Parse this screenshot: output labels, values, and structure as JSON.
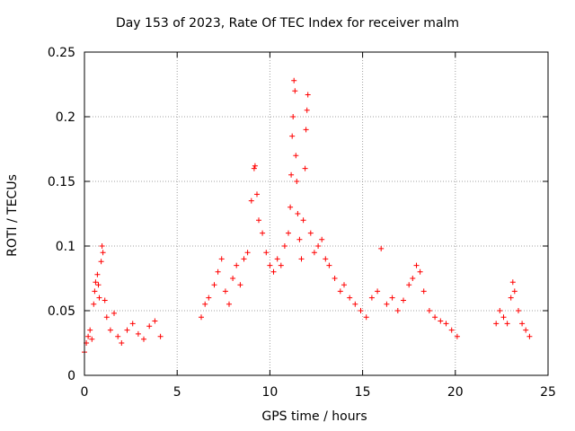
{
  "chart_data": {
    "type": "scatter",
    "title": "Day 153 of 2023, Rate Of TEC Index for receiver malm",
    "xlabel": "GPS time / hours",
    "ylabel": "ROTI / TECUs",
    "xlim": [
      0,
      25
    ],
    "ylim": [
      0,
      0.25
    ],
    "xticks": [
      "0",
      "5",
      "10",
      "15",
      "20",
      "25"
    ],
    "yticks": [
      "0",
      "0.05",
      "0.1",
      "0.15",
      "0.2",
      "0.25"
    ],
    "grid": true,
    "marker": "+",
    "color": "#ff0000",
    "series": [
      {
        "points": [
          [
            0.0,
            0.018
          ],
          [
            0.1,
            0.025
          ],
          [
            0.2,
            0.03
          ],
          [
            0.3,
            0.035
          ],
          [
            0.4,
            0.028
          ],
          [
            0.5,
            0.055
          ],
          [
            0.55,
            0.065
          ],
          [
            0.6,
            0.072
          ],
          [
            0.7,
            0.078
          ],
          [
            0.75,
            0.07
          ],
          [
            0.8,
            0.06
          ],
          [
            0.9,
            0.088
          ],
          [
            0.95,
            0.1
          ],
          [
            1.0,
            0.095
          ],
          [
            1.1,
            0.058
          ],
          [
            1.2,
            0.045
          ],
          [
            1.4,
            0.035
          ],
          [
            1.6,
            0.048
          ],
          [
            1.8,
            0.03
          ],
          [
            2.0,
            0.025
          ],
          [
            2.3,
            0.035
          ],
          [
            2.6,
            0.04
          ],
          [
            2.9,
            0.032
          ],
          [
            3.2,
            0.028
          ],
          [
            3.5,
            0.038
          ],
          [
            3.8,
            0.042
          ],
          [
            4.1,
            0.03
          ],
          [
            6.3,
            0.045
          ],
          [
            6.5,
            0.055
          ],
          [
            6.7,
            0.06
          ],
          [
            7.0,
            0.07
          ],
          [
            7.2,
            0.08
          ],
          [
            7.4,
            0.09
          ],
          [
            7.6,
            0.065
          ],
          [
            7.8,
            0.055
          ],
          [
            8.0,
            0.075
          ],
          [
            8.2,
            0.085
          ],
          [
            8.4,
            0.07
          ],
          [
            8.6,
            0.09
          ],
          [
            8.8,
            0.095
          ],
          [
            9.0,
            0.135
          ],
          [
            9.15,
            0.16
          ],
          [
            9.2,
            0.162
          ],
          [
            9.3,
            0.14
          ],
          [
            9.4,
            0.12
          ],
          [
            9.6,
            0.11
          ],
          [
            9.8,
            0.095
          ],
          [
            10.0,
            0.085
          ],
          [
            10.2,
            0.08
          ],
          [
            10.4,
            0.09
          ],
          [
            10.6,
            0.085
          ],
          [
            10.8,
            0.1
          ],
          [
            11.0,
            0.11
          ],
          [
            11.1,
            0.13
          ],
          [
            11.15,
            0.155
          ],
          [
            11.2,
            0.185
          ],
          [
            11.25,
            0.2
          ],
          [
            11.3,
            0.228
          ],
          [
            11.35,
            0.22
          ],
          [
            11.4,
            0.17
          ],
          [
            11.45,
            0.15
          ],
          [
            11.5,
            0.125
          ],
          [
            11.6,
            0.105
          ],
          [
            11.7,
            0.09
          ],
          [
            11.8,
            0.12
          ],
          [
            11.9,
            0.16
          ],
          [
            11.95,
            0.19
          ],
          [
            12.0,
            0.205
          ],
          [
            12.05,
            0.217
          ],
          [
            12.2,
            0.11
          ],
          [
            12.4,
            0.095
          ],
          [
            12.6,
            0.1
          ],
          [
            12.8,
            0.105
          ],
          [
            13.0,
            0.09
          ],
          [
            13.2,
            0.085
          ],
          [
            13.5,
            0.075
          ],
          [
            13.8,
            0.065
          ],
          [
            14.0,
            0.07
          ],
          [
            14.3,
            0.06
          ],
          [
            14.6,
            0.055
          ],
          [
            14.9,
            0.05
          ],
          [
            15.2,
            0.045
          ],
          [
            15.5,
            0.06
          ],
          [
            15.8,
            0.065
          ],
          [
            16.0,
            0.098
          ],
          [
            16.3,
            0.055
          ],
          [
            16.6,
            0.06
          ],
          [
            16.9,
            0.05
          ],
          [
            17.2,
            0.058
          ],
          [
            17.5,
            0.07
          ],
          [
            17.7,
            0.075
          ],
          [
            17.9,
            0.085
          ],
          [
            18.1,
            0.08
          ],
          [
            18.3,
            0.065
          ],
          [
            18.6,
            0.05
          ],
          [
            18.9,
            0.045
          ],
          [
            19.2,
            0.042
          ],
          [
            19.5,
            0.04
          ],
          [
            19.8,
            0.035
          ],
          [
            20.1,
            0.03
          ],
          [
            22.2,
            0.04
          ],
          [
            22.4,
            0.05
          ],
          [
            22.6,
            0.045
          ],
          [
            22.8,
            0.04
          ],
          [
            23.0,
            0.06
          ],
          [
            23.1,
            0.072
          ],
          [
            23.2,
            0.065
          ],
          [
            23.4,
            0.05
          ],
          [
            23.6,
            0.04
          ],
          [
            23.8,
            0.035
          ],
          [
            24.0,
            0.03
          ]
        ]
      }
    ],
    "data_gaps_hours": [
      [
        4.2,
        6.2
      ],
      [
        20.2,
        22.1
      ]
    ]
  }
}
